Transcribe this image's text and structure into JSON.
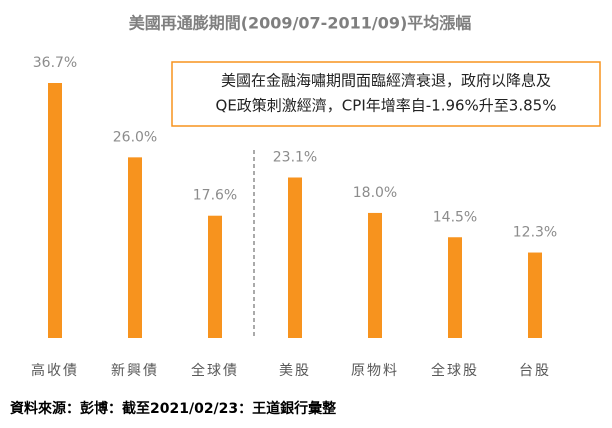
{
  "chart_data": {
    "type": "bar",
    "title": "美國再通膨期間(2009/07-2011/09)平均漲幅",
    "categories": [
      "高收債",
      "新興債",
      "全球債",
      "美股",
      "原物料",
      "全球股",
      "台股"
    ],
    "values": [
      36.7,
      26.0,
      17.6,
      23.1,
      18.0,
      14.5,
      12.3
    ],
    "value_labels": [
      "36.7%",
      "26.0%",
      "17.6%",
      "23.1%",
      "18.0%",
      "14.5%",
      "12.3%"
    ],
    "color": "#f7931e",
    "annotation": [
      "美國在金融海嘯期間面臨經濟衰退，政府以降息及",
      "QE政策刺激經濟，CPI年增率自-1.96%升至3.85%"
    ],
    "source": "資料來源：彭博：截至2021/02/23：王道銀行彙整"
  }
}
